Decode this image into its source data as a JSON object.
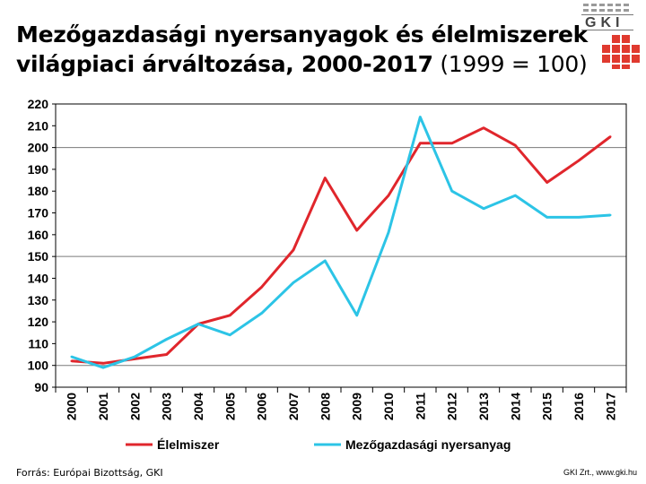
{
  "header": {
    "title_line1": "Mezőgazdasági nyersanyagok és élelmiszerek",
    "title_line2_bold": "világpiaci árváltozása, 2000-2017",
    "title_line2_normal": " (1999 = 100)"
  },
  "logo": {
    "text": "GKI",
    "colors": {
      "red": "#e03a2f",
      "gray": "#9a9a9a"
    }
  },
  "footer": {
    "source": "Forrás: Európai Bizottság, GKI",
    "credit": "GKI Zrt., www.gki.hu"
  },
  "chart_data": {
    "type": "line",
    "categories": [
      "2000",
      "2001",
      "2002",
      "2003",
      "2004",
      "2005",
      "2006",
      "2007",
      "2008",
      "2009",
      "2010",
      "2011",
      "2012",
      "2013",
      "2014",
      "2015",
      "2016",
      "2017"
    ],
    "ylim": [
      90,
      220
    ],
    "yticks": [
      90,
      100,
      110,
      120,
      130,
      140,
      150,
      160,
      170,
      180,
      190,
      200,
      210,
      220
    ],
    "gridlines": [
      100,
      150,
      200
    ],
    "legend_position": "bottom",
    "series": [
      {
        "name": "Élelmiszer",
        "color": "#e0262c",
        "values": [
          102,
          101,
          103,
          105,
          119,
          123,
          136,
          153,
          186,
          162,
          178,
          202,
          202,
          209,
          201,
          184,
          194,
          205
        ]
      },
      {
        "name": "Mezőgazdasági nyersanyag",
        "color": "#2cc4e6",
        "values": [
          104,
          99,
          104,
          112,
          119,
          114,
          124,
          138,
          148,
          123,
          161,
          214,
          180,
          172,
          178,
          168,
          168,
          169
        ]
      }
    ]
  }
}
